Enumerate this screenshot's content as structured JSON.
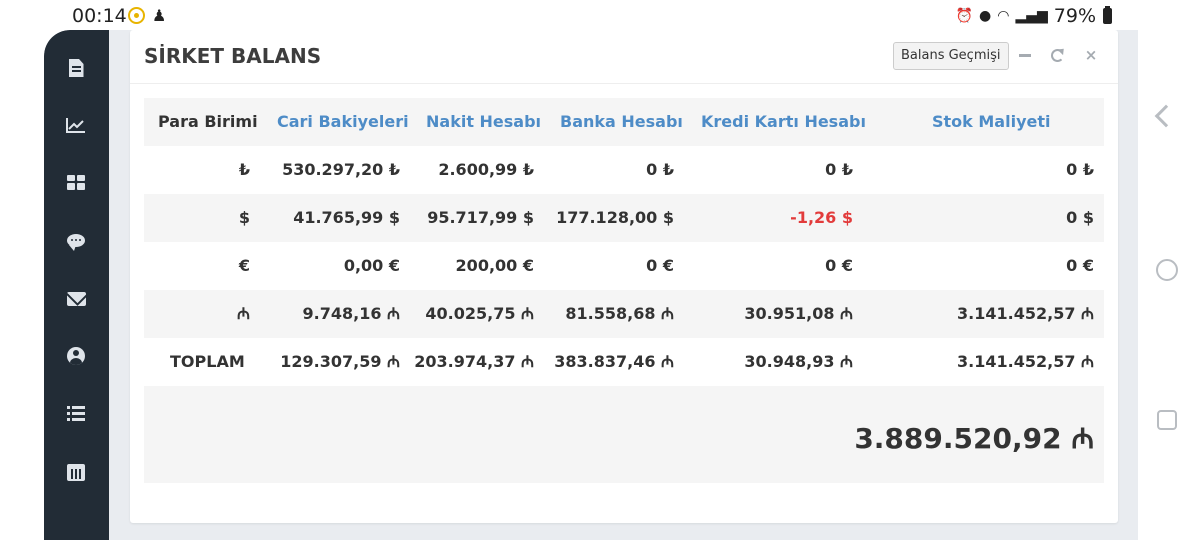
{
  "status_bar": {
    "time": "00:14",
    "battery": "79%",
    "icons": [
      "whatsapp-icon",
      "app-notification-icon",
      "alarm-icon",
      "location-icon",
      "wifi-icon",
      "signal-icon",
      "battery-icon"
    ]
  },
  "sidebar": {
    "icons": [
      "document-icon",
      "line-chart-icon",
      "dashboard-icon",
      "comment-icon",
      "envelope-icon",
      "user-circle-icon",
      "list-icon",
      "calendar-icon"
    ]
  },
  "panel": {
    "title": "SİRKET BALANS",
    "history_button": "Balans Geçmişi",
    "controls": {
      "minimize": "minimize-icon",
      "refresh": "refresh-icon",
      "close": "×"
    }
  },
  "table": {
    "headers": [
      "Para Birimi",
      "Cari Bakiyeleri",
      "Nakit Hesabı",
      "Banka Hesabı",
      "Kredi Kartı Hesabı",
      "Stok Maliyeti"
    ],
    "rows": [
      {
        "currency": "₺",
        "cari": "530.297,20 ₺",
        "nakit": "2.600,99 ₺",
        "banka": "0 ₺",
        "kredi": "0 ₺",
        "stok": "0 ₺"
      },
      {
        "currency": "$",
        "cari": "41.765,99 $",
        "nakit": "95.717,99 $",
        "banka": "177.128,00 $",
        "kredi": "-1,26 $",
        "stok": "0 $"
      },
      {
        "currency": "€",
        "cari": "0,00 €",
        "nakit": "200,00 €",
        "banka": "0 €",
        "kredi": "0 €",
        "stok": "0 €"
      },
      {
        "currency": "₼",
        "cari": "9.748,16 ₼",
        "nakit": "40.025,75 ₼",
        "banka": "81.558,68 ₼",
        "kredi": "30.951,08 ₼",
        "stok": "3.141.452,57 ₼"
      }
    ],
    "total": {
      "label": "TOPLAM",
      "cari": "129.307,59 ₼",
      "nakit": "203.974,37 ₼",
      "banka": "383.837,46 ₼",
      "kredi": "30.948,93 ₼",
      "stok": "3.141.452,57 ₼"
    },
    "grand_total": "3.889.520,92 ₼"
  },
  "colors": {
    "sidebar_bg": "#222c36",
    "header_link": "#4e8cc7",
    "negative": "#e23b3b",
    "row_alt": "#f5f5f5"
  }
}
